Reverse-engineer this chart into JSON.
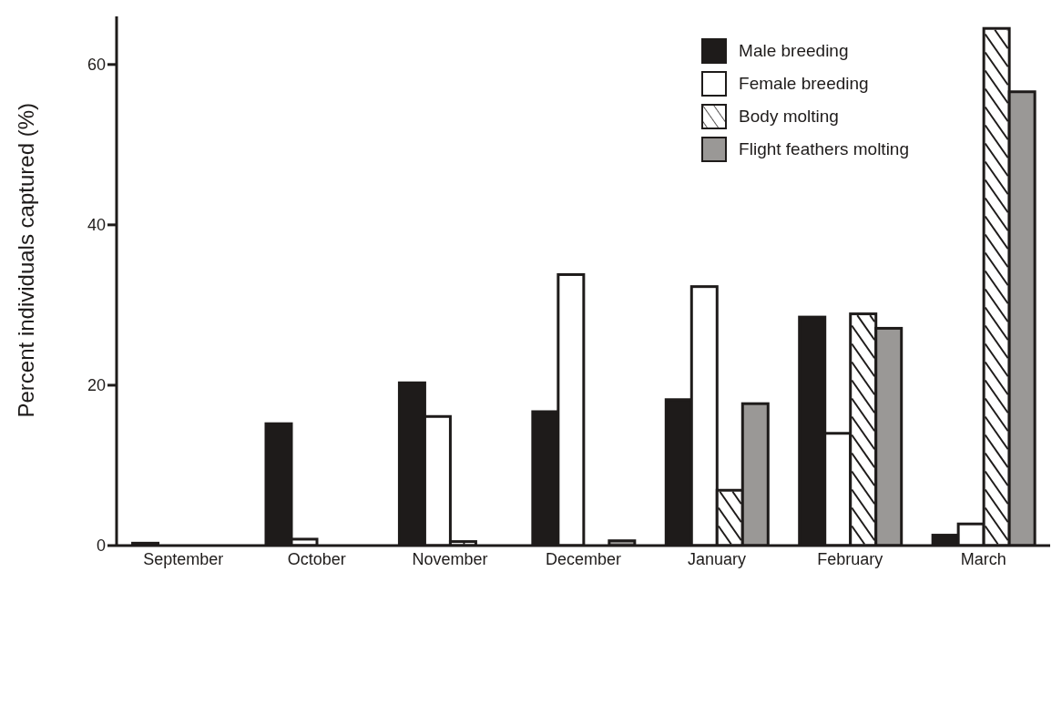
{
  "chart_data": {
    "type": "bar",
    "ylabel": "Percent individuals captured (%)",
    "categories": [
      "September",
      "October",
      "November",
      "December",
      "January",
      "February",
      "March"
    ],
    "series": [
      {
        "name": "Male breeding",
        "color": "#1e1b1a",
        "values": [
          0.3,
          15.2,
          20.3,
          16.7,
          18.2,
          28.5,
          1.3
        ]
      },
      {
        "name": "Female breeding",
        "color": "#ffffff",
        "values": [
          0,
          0.8,
          16.1,
          33.8,
          32.3,
          14.0,
          2.7
        ]
      },
      {
        "name": "Body molting",
        "color": "#ffffff",
        "values": [
          0,
          0,
          0.5,
          0,
          6.9,
          28.9,
          64.5
        ]
      },
      {
        "name": "Flight feathers molting",
        "color": "#9a9896",
        "values": [
          0,
          0,
          0,
          0.6,
          17.7,
          27.1,
          56.6
        ]
      }
    ],
    "ylim": [
      0,
      66
    ],
    "yticks": [
      0,
      20,
      40,
      60
    ],
    "grid": false,
    "legend": "top right"
  }
}
